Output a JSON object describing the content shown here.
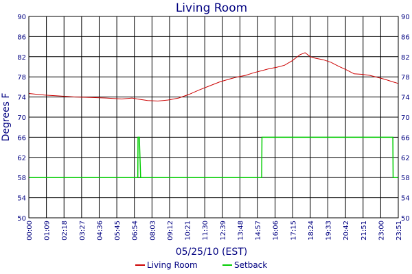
{
  "chart_data": {
    "type": "line",
    "title": "Living Room",
    "xlabel": "05/25/10 (EST)",
    "ylabel": "Degrees F",
    "ylim": [
      50,
      90
    ],
    "xlim_minutes": [
      0,
      1431
    ],
    "y_ticks": [
      "50",
      "54",
      "58",
      "62",
      "66",
      "70",
      "74",
      "78",
      "82",
      "86",
      "90"
    ],
    "x_ticks": [
      "00:00",
      "01:09",
      "02:18",
      "03:27",
      "04:36",
      "05:45",
      "06:54",
      "08:03",
      "09:12",
      "10:21",
      "11:30",
      "12:39",
      "13:48",
      "14:57",
      "16:06",
      "17:15",
      "18:24",
      "19:33",
      "20:42",
      "21:51",
      "23:00",
      "23:51"
    ],
    "grid": true,
    "legend_position": "bottom-center",
    "series": [
      {
        "name": "Living Room",
        "color": "#cc0000",
        "points": [
          [
            0,
            74.7
          ],
          [
            60,
            74.4
          ],
          [
            120,
            74.2
          ],
          [
            180,
            74.0
          ],
          [
            240,
            73.9
          ],
          [
            300,
            73.8
          ],
          [
            360,
            73.6
          ],
          [
            400,
            73.8
          ],
          [
            420,
            73.6
          ],
          [
            460,
            73.3
          ],
          [
            500,
            73.2
          ],
          [
            540,
            73.4
          ],
          [
            580,
            73.8
          ],
          [
            620,
            74.5
          ],
          [
            660,
            75.4
          ],
          [
            700,
            76.2
          ],
          [
            740,
            77.0
          ],
          [
            780,
            77.6
          ],
          [
            810,
            78.0
          ],
          [
            840,
            78.3
          ],
          [
            870,
            78.8
          ],
          [
            900,
            79.2
          ],
          [
            930,
            79.6
          ],
          [
            960,
            79.9
          ],
          [
            990,
            80.3
          ],
          [
            1020,
            81.2
          ],
          [
            1050,
            82.4
          ],
          [
            1070,
            82.8
          ],
          [
            1090,
            82.0
          ],
          [
            1110,
            81.7
          ],
          [
            1140,
            81.4
          ],
          [
            1170,
            80.9
          ],
          [
            1200,
            80.1
          ],
          [
            1230,
            79.4
          ],
          [
            1260,
            78.6
          ],
          [
            1290,
            78.5
          ],
          [
            1320,
            78.3
          ],
          [
            1350,
            77.9
          ],
          [
            1380,
            77.5
          ],
          [
            1410,
            77.0
          ],
          [
            1431,
            76.7
          ]
        ]
      },
      {
        "name": "Setback",
        "color": "#00cc00",
        "points": [
          [
            0,
            58
          ],
          [
            422,
            58
          ],
          [
            423,
            66
          ],
          [
            428,
            66
          ],
          [
            433,
            58
          ],
          [
            902,
            58
          ],
          [
            903,
            66
          ],
          [
            1410,
            66
          ],
          [
            1411,
            58
          ],
          [
            1431,
            58
          ]
        ]
      }
    ]
  }
}
